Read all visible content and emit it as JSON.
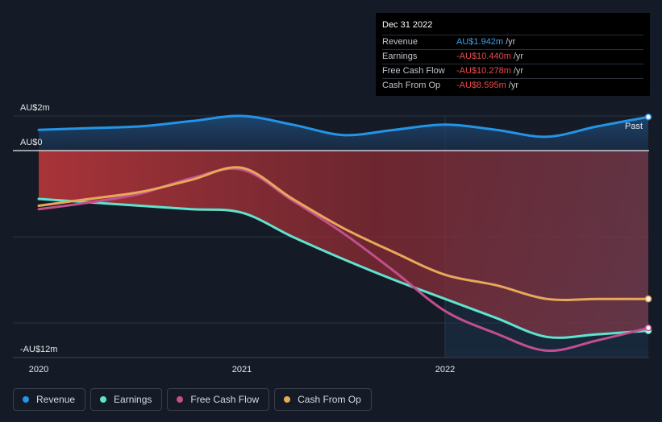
{
  "tooltip": {
    "date": "Dec 31 2022",
    "rows": [
      {
        "label": "Revenue",
        "value": "AU$1.942m",
        "unit": "/yr",
        "color": "#3ba1f0"
      },
      {
        "label": "Earnings",
        "value": "-AU$10.440m",
        "unit": "/yr",
        "color": "#e84c4c"
      },
      {
        "label": "Free Cash Flow",
        "value": "-AU$10.278m",
        "unit": "/yr",
        "color": "#e84c4c"
      },
      {
        "label": "Cash From Op",
        "value": "-AU$8.595m",
        "unit": "/yr",
        "color": "#e84c4c"
      }
    ]
  },
  "past_label": "Past",
  "legend": [
    {
      "label": "Revenue",
      "color": "#2394e6"
    },
    {
      "label": "Earnings",
      "color": "#5fe3cf"
    },
    {
      "label": "Free Cash Flow",
      "color": "#c24f8e"
    },
    {
      "label": "Cash From Op",
      "color": "#e8a85a"
    }
  ],
  "chart_data": {
    "type": "line",
    "title": "",
    "xlabel": "",
    "ylabel": "",
    "y_tick_labels": [
      "AU$2m",
      "AU$0",
      "-AU$12m"
    ],
    "x_tick_labels": [
      "2020",
      "2021",
      "2022"
    ],
    "x_ticks": [
      2020.0,
      2021.0,
      2022.0
    ],
    "xlim": [
      2020.0,
      2023.0
    ],
    "ylim": [
      -12,
      2
    ],
    "series": [
      {
        "name": "Revenue",
        "color": "#2394e6",
        "x": [
          2020.0,
          2020.25,
          2020.5,
          2020.75,
          2021.0,
          2021.25,
          2021.5,
          2021.75,
          2022.0,
          2022.25,
          2022.5,
          2022.75,
          2023.0
        ],
        "values": [
          1.2,
          1.3,
          1.4,
          1.7,
          2.0,
          1.5,
          0.9,
          1.2,
          1.5,
          1.2,
          0.8,
          1.4,
          1.94
        ]
      },
      {
        "name": "Earnings",
        "color": "#5fe3cf",
        "x": [
          2020.0,
          2020.25,
          2020.5,
          2020.75,
          2021.0,
          2021.25,
          2021.5,
          2021.75,
          2022.0,
          2022.25,
          2022.5,
          2022.75,
          2023.0
        ],
        "values": [
          -2.8,
          -3.0,
          -3.2,
          -3.4,
          -3.6,
          -5.0,
          -6.3,
          -7.5,
          -8.6,
          -9.7,
          -10.8,
          -10.65,
          -10.44
        ]
      },
      {
        "name": "Free Cash Flow",
        "color": "#c24f8e",
        "x": [
          2020.0,
          2020.25,
          2020.5,
          2020.75,
          2021.0,
          2021.25,
          2021.5,
          2021.75,
          2022.0,
          2022.25,
          2022.5,
          2022.75,
          2023.0
        ],
        "values": [
          -3.4,
          -3.0,
          -2.5,
          -1.6,
          -1.1,
          -2.9,
          -4.8,
          -7.0,
          -9.3,
          -10.6,
          -11.6,
          -11.0,
          -10.28
        ]
      },
      {
        "name": "Cash From Op",
        "color": "#e8a85a",
        "x": [
          2020.0,
          2020.25,
          2020.5,
          2020.75,
          2021.0,
          2021.25,
          2021.5,
          2021.75,
          2022.0,
          2022.25,
          2022.5,
          2022.75,
          2023.0
        ],
        "values": [
          -3.2,
          -2.8,
          -2.4,
          -1.7,
          -1.0,
          -2.8,
          -4.5,
          -5.9,
          -7.2,
          -7.8,
          -8.6,
          -8.6,
          -8.6
        ]
      }
    ]
  }
}
